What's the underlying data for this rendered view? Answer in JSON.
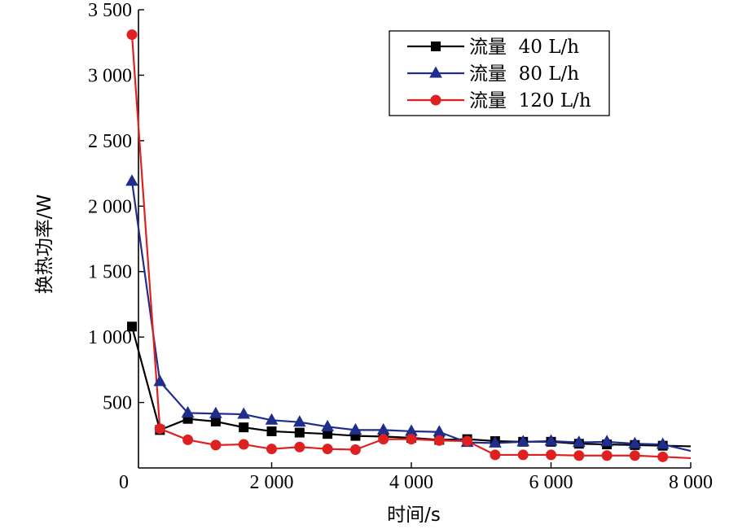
{
  "chart_data": {
    "type": "line",
    "xlabel": "时间/s",
    "ylabel": "换热功率/W",
    "xlim": [
      0,
      8000
    ],
    "ylim": [
      0,
      3500
    ],
    "x_ticks": [
      0,
      2000,
      4000,
      6000,
      8000
    ],
    "x_tick_labels": [
      "0",
      "2 000",
      "4 000",
      "6 000",
      "8 000"
    ],
    "y_ticks": [
      500,
      1000,
      1500,
      2000,
      2500,
      3000,
      3500
    ],
    "y_tick_labels": [
      "500",
      "1 000",
      "1 500",
      "2 000",
      "2 500",
      "3 000",
      "3 500"
    ],
    "grid": false,
    "legend_position": "top-right",
    "series": [
      {
        "name": "流量  40 L/h",
        "color": "#000000",
        "marker": "square",
        "x": [
          0,
          400,
          800,
          1200,
          1600,
          2000,
          2400,
          2800,
          3200,
          3600,
          4000,
          4400,
          4800,
          5200,
          5600,
          6000,
          6400,
          6800,
          7200,
          7600,
          8000
        ],
        "y": [
          1080,
          290,
          375,
          355,
          310,
          280,
          270,
          260,
          245,
          240,
          230,
          215,
          220,
          205,
          200,
          200,
          185,
          180,
          175,
          170,
          165
        ]
      },
      {
        "name": "流量  80 L/h",
        "color": "#1f2d8c",
        "marker": "triangle",
        "x": [
          0,
          400,
          800,
          1200,
          1600,
          2000,
          2400,
          2800,
          3200,
          3600,
          4000,
          4400,
          4800,
          5200,
          5600,
          6000,
          6400,
          6800,
          7200,
          7600,
          8000
        ],
        "y": [
          2190,
          660,
          420,
          415,
          410,
          365,
          350,
          315,
          290,
          290,
          280,
          275,
          195,
          190,
          200,
          205,
          195,
          200,
          185,
          180,
          130
        ]
      },
      {
        "name": "流量  120 L/h",
        "color": "#e02020",
        "marker": "circle",
        "x": [
          0,
          400,
          800,
          1200,
          1600,
          2000,
          2400,
          2800,
          3200,
          3600,
          4000,
          4400,
          4800,
          5200,
          5600,
          6000,
          6400,
          6800,
          7200,
          7600,
          8000
        ],
        "y": [
          3310,
          300,
          215,
          175,
          180,
          145,
          160,
          145,
          140,
          220,
          220,
          210,
          205,
          100,
          100,
          100,
          95,
          95,
          95,
          85,
          75
        ]
      }
    ]
  }
}
